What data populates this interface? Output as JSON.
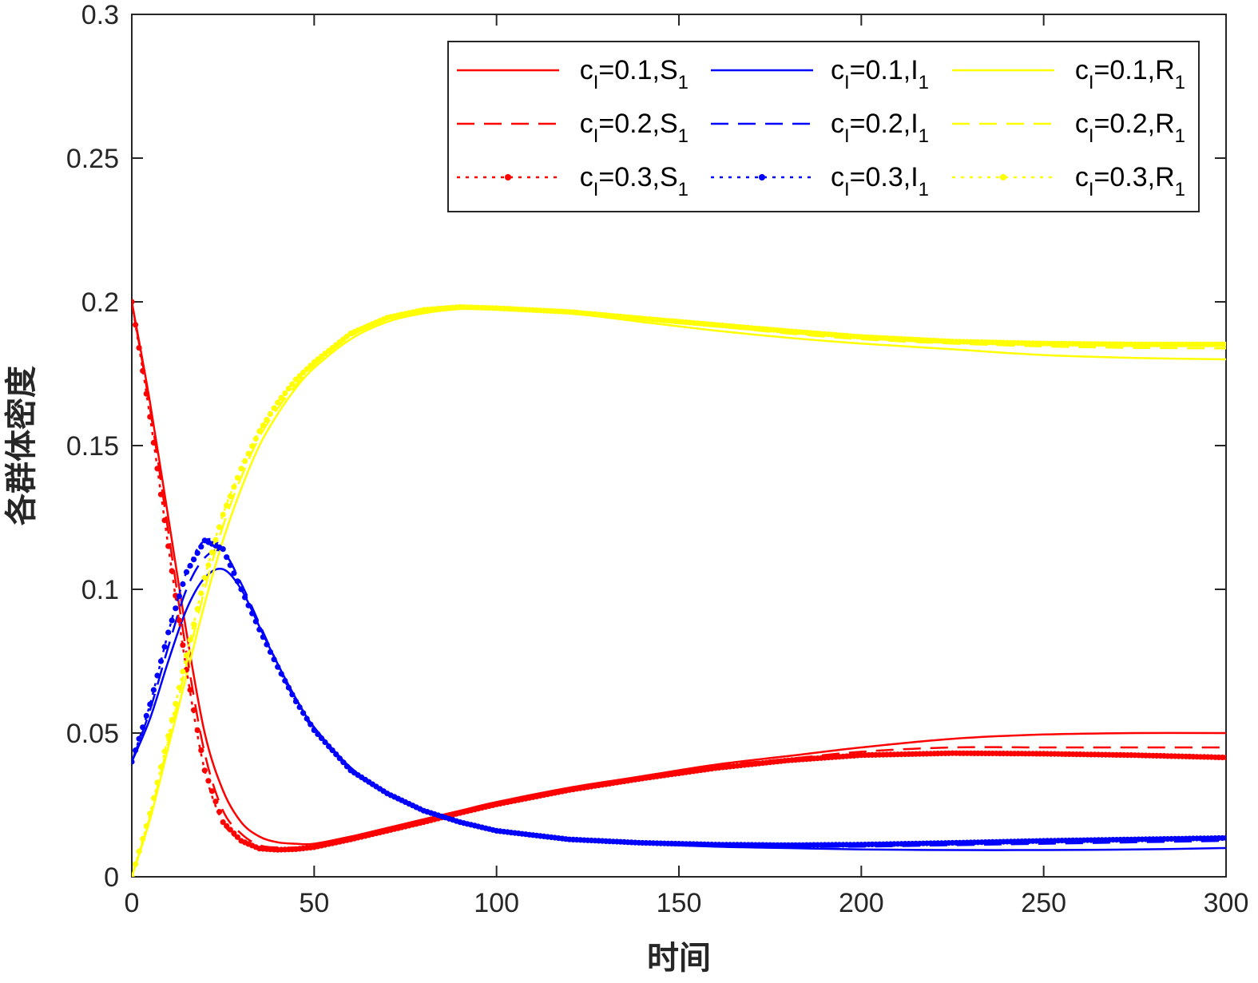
{
  "chart_data": {
    "type": "line",
    "title": "",
    "xlabel": "时间",
    "ylabel": "各群体密度",
    "xlim": [
      0,
      300
    ],
    "ylim": [
      0,
      0.3
    ],
    "xticks": [
      0,
      50,
      100,
      150,
      200,
      250,
      300
    ],
    "xtick_labels": [
      "0",
      "50",
      "100",
      "150",
      "200",
      "250",
      "300"
    ],
    "yticks": [
      0,
      0.05,
      0.1,
      0.15,
      0.2,
      0.25,
      0.3
    ],
    "ytick_labels": [
      "0",
      "0.05",
      "0.1",
      "0.15",
      "0.2",
      "0.25",
      "0.3"
    ],
    "grid": false,
    "legend_position": "top-right",
    "x": [
      0,
      5,
      10,
      15,
      20,
      25,
      30,
      35,
      40,
      45,
      50,
      60,
      70,
      80,
      90,
      100,
      120,
      140,
      160,
      180,
      200,
      225,
      250,
      275,
      300
    ],
    "series": [
      {
        "name": "cI=0.1,S1",
        "legend": {
          "pre": "c",
          "sub1": "I",
          "mid": "=0.1,S",
          "sub2": "1"
        },
        "color": "#ff0000",
        "style": "solid",
        "values": [
          0.2,
          0.165,
          0.125,
          0.085,
          0.05,
          0.03,
          0.019,
          0.014,
          0.012,
          0.0115,
          0.0115,
          0.014,
          0.017,
          0.02,
          0.023,
          0.026,
          0.031,
          0.035,
          0.039,
          0.042,
          0.045,
          0.048,
          0.0495,
          0.05,
          0.05
        ]
      },
      {
        "name": "cI=0.1,I1",
        "legend": {
          "pre": "c",
          "sub1": "I",
          "mid": "=0.1,I",
          "sub2": "1"
        },
        "color": "#0000ff",
        "style": "solid",
        "values": [
          0.04,
          0.055,
          0.075,
          0.093,
          0.104,
          0.107,
          0.1,
          0.087,
          0.074,
          0.062,
          0.052,
          0.038,
          0.029,
          0.023,
          0.019,
          0.016,
          0.013,
          0.0115,
          0.0105,
          0.01,
          0.0095,
          0.0093,
          0.0093,
          0.0095,
          0.01
        ]
      },
      {
        "name": "cI=0.1,R1",
        "legend": {
          "pre": "c",
          "sub1": "I",
          "mid": "=0.1,R",
          "sub2": "1"
        },
        "color": "#ffff00",
        "style": "solid",
        "values": [
          0,
          0.02,
          0.045,
          0.07,
          0.095,
          0.117,
          0.135,
          0.15,
          0.161,
          0.17,
          0.177,
          0.187,
          0.193,
          0.196,
          0.1975,
          0.1975,
          0.196,
          0.193,
          0.19,
          0.1875,
          0.1855,
          0.1835,
          0.1815,
          0.1805,
          0.18
        ]
      },
      {
        "name": "cI=0.2,S1",
        "legend": {
          "pre": "c",
          "sub1": "I",
          "mid": "=0.2,S",
          "sub2": "1"
        },
        "color": "#ff0000",
        "style": "dashed",
        "values": [
          0.2,
          0.163,
          0.12,
          0.078,
          0.043,
          0.023,
          0.015,
          0.011,
          0.0102,
          0.0102,
          0.0108,
          0.0135,
          0.0165,
          0.0195,
          0.0225,
          0.0255,
          0.0305,
          0.0345,
          0.0385,
          0.041,
          0.0435,
          0.045,
          0.045,
          0.045,
          0.045
        ]
      },
      {
        "name": "cI=0.2,I1",
        "legend": {
          "pre": "c",
          "sub1": "I",
          "mid": "=0.2,I",
          "sub2": "1"
        },
        "color": "#0000ff",
        "style": "dashed",
        "values": [
          0.04,
          0.058,
          0.08,
          0.1,
          0.111,
          0.113,
          0.102,
          0.088,
          0.074,
          0.062,
          0.052,
          0.038,
          0.029,
          0.023,
          0.019,
          0.016,
          0.013,
          0.0115,
          0.0108,
          0.0105,
          0.0105,
          0.011,
          0.0115,
          0.012,
          0.0125
        ]
      },
      {
        "name": "cI=0.2,R1",
        "legend": {
          "pre": "c",
          "sub1": "I",
          "mid": "=0.2,R",
          "sub2": "1"
        },
        "color": "#ffff00",
        "style": "dashed",
        "values": [
          0,
          0.021,
          0.047,
          0.074,
          0.1,
          0.122,
          0.139,
          0.153,
          0.163,
          0.171,
          0.178,
          0.188,
          0.194,
          0.197,
          0.198,
          0.1978,
          0.1965,
          0.194,
          0.1915,
          0.189,
          0.187,
          0.1855,
          0.1845,
          0.184,
          0.1838
        ]
      },
      {
        "name": "cI=0.3,S1",
        "legend": {
          "pre": "c",
          "sub1": "I",
          "mid": "=0.3,S",
          "sub2": "1"
        },
        "color": "#ff0000",
        "style": "dotted",
        "values": [
          0.2,
          0.16,
          0.115,
          0.072,
          0.037,
          0.019,
          0.0125,
          0.0098,
          0.0094,
          0.0096,
          0.0103,
          0.013,
          0.016,
          0.019,
          0.0222,
          0.0252,
          0.0302,
          0.0342,
          0.0378,
          0.0405,
          0.0423,
          0.043,
          0.0428,
          0.0423,
          0.0415
        ]
      },
      {
        "name": "cI=0.3,I1",
        "legend": {
          "pre": "c",
          "sub1": "I",
          "mid": "=0.3,I",
          "sub2": "1"
        },
        "color": "#0000ff",
        "style": "dotted",
        "values": [
          0.04,
          0.06,
          0.085,
          0.106,
          0.117,
          0.114,
          0.1,
          0.086,
          0.073,
          0.061,
          0.051,
          0.037,
          0.029,
          0.023,
          0.019,
          0.016,
          0.013,
          0.0118,
          0.0112,
          0.011,
          0.0112,
          0.0118,
          0.0125,
          0.013,
          0.0135
        ]
      },
      {
        "name": "cI=0.3,R1",
        "legend": {
          "pre": "c",
          "sub1": "I",
          "mid": "=0.3,R",
          "sub2": "1"
        },
        "color": "#ffff00",
        "style": "dotted",
        "values": [
          0,
          0.022,
          0.049,
          0.077,
          0.104,
          0.126,
          0.142,
          0.155,
          0.165,
          0.173,
          0.179,
          0.189,
          0.1945,
          0.1972,
          0.1982,
          0.1978,
          0.1965,
          0.1942,
          0.192,
          0.1898,
          0.1878,
          0.1862,
          0.1855,
          0.1852,
          0.1852
        ]
      }
    ]
  }
}
